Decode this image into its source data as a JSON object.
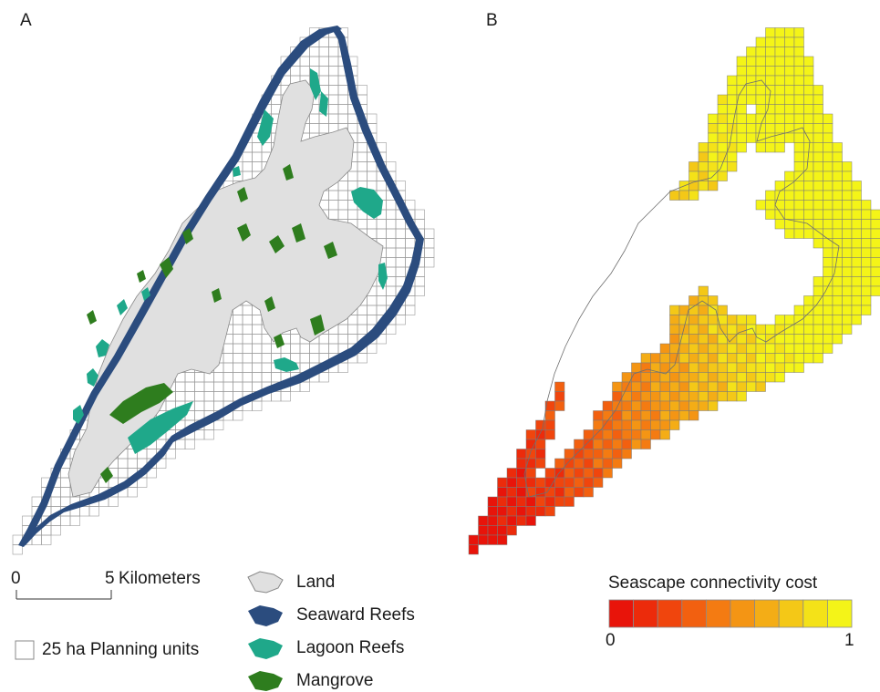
{
  "panels": {
    "a_label": "A",
    "b_label": "B"
  },
  "scalebar": {
    "start": "0",
    "end": "5",
    "unit": "Kilometers"
  },
  "legend": {
    "planning_units": "25 ha Planning units",
    "items": [
      {
        "label": "Land",
        "color": "#e0e0e0",
        "icon": "land-patch-icon"
      },
      {
        "label": "Seaward Reefs",
        "color": "#2b4c7e",
        "icon": "seaward-reef-patch-icon"
      },
      {
        "label": "Lagoon Reefs",
        "color": "#1fa88a",
        "icon": "lagoon-reef-patch-icon"
      },
      {
        "label": "Mangrove",
        "color": "#2e7d1e",
        "icon": "mangrove-patch-icon"
      }
    ]
  },
  "colorbar": {
    "title": "Seascape connectivity cost",
    "min_label": "0",
    "max_label": "1",
    "colors": [
      "#e8140a",
      "#ec2b0b",
      "#f0450d",
      "#f26010",
      "#f47b12",
      "#f49514",
      "#f4ad16",
      "#f4c817",
      "#f4e218",
      "#f4f418"
    ]
  }
}
